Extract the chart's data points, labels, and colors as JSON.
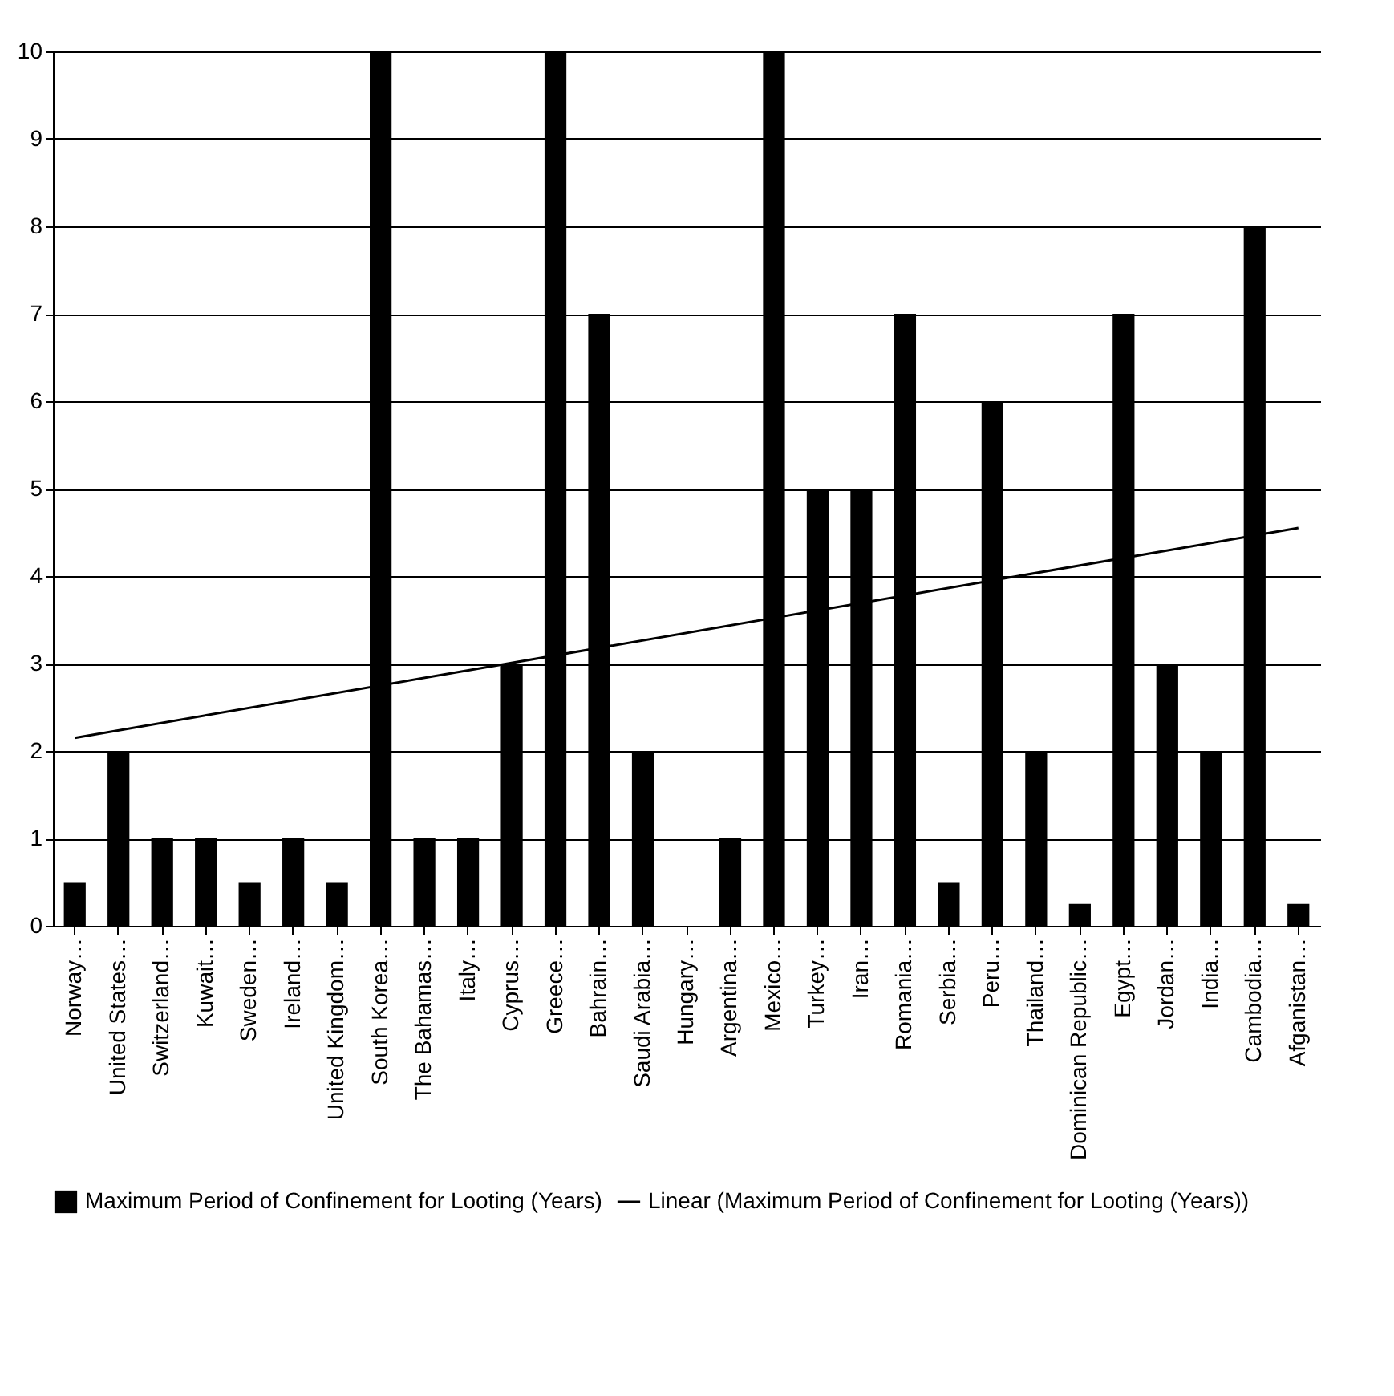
{
  "chart_data": {
    "type": "bar",
    "categories": [
      "Norway…",
      "United States…",
      "Switzerland…",
      "Kuwait…",
      "Sweden…",
      "Ireland…",
      "United Kingdom…",
      "South Korea…",
      "The Bahamas…",
      "Italy…",
      "Cyprus…",
      "Greece…",
      "Bahrain…",
      "Saudi Arabia…",
      "Hungary…",
      "Argentina…",
      "Mexico…",
      "Turkey…",
      "Iran…",
      "Romania…",
      "Serbia…",
      "Peru…",
      "Thailand…",
      "Dominican Republic…",
      "Egypt…",
      "Jordan…",
      "India…",
      "Cambodia…",
      "Afganistan…"
    ],
    "series": [
      {
        "name": "Maximum Period of Confinement for Looting (Years)",
        "color": "#000000",
        "values": [
          0.5,
          2,
          1,
          1,
          0.5,
          1,
          0.5,
          10,
          1,
          1,
          3,
          10,
          7,
          2,
          0,
          1,
          10,
          5,
          5,
          7,
          0.5,
          6,
          2,
          0.25,
          7,
          3,
          2,
          8,
          0.25
        ]
      },
      {
        "name": "Linear (Maximum Period of Confinement for Looting (Years))",
        "type": "line",
        "color": "#000000",
        "x": [
          "Norway…",
          "Afganistan…"
        ],
        "values": [
          2.15,
          4.55
        ]
      }
    ],
    "ylim": [
      0,
      10
    ],
    "yticks": [
      0,
      1,
      2,
      3,
      4,
      5,
      6,
      7,
      8,
      9,
      10
    ],
    "grid": "y",
    "legend": "bottom"
  }
}
